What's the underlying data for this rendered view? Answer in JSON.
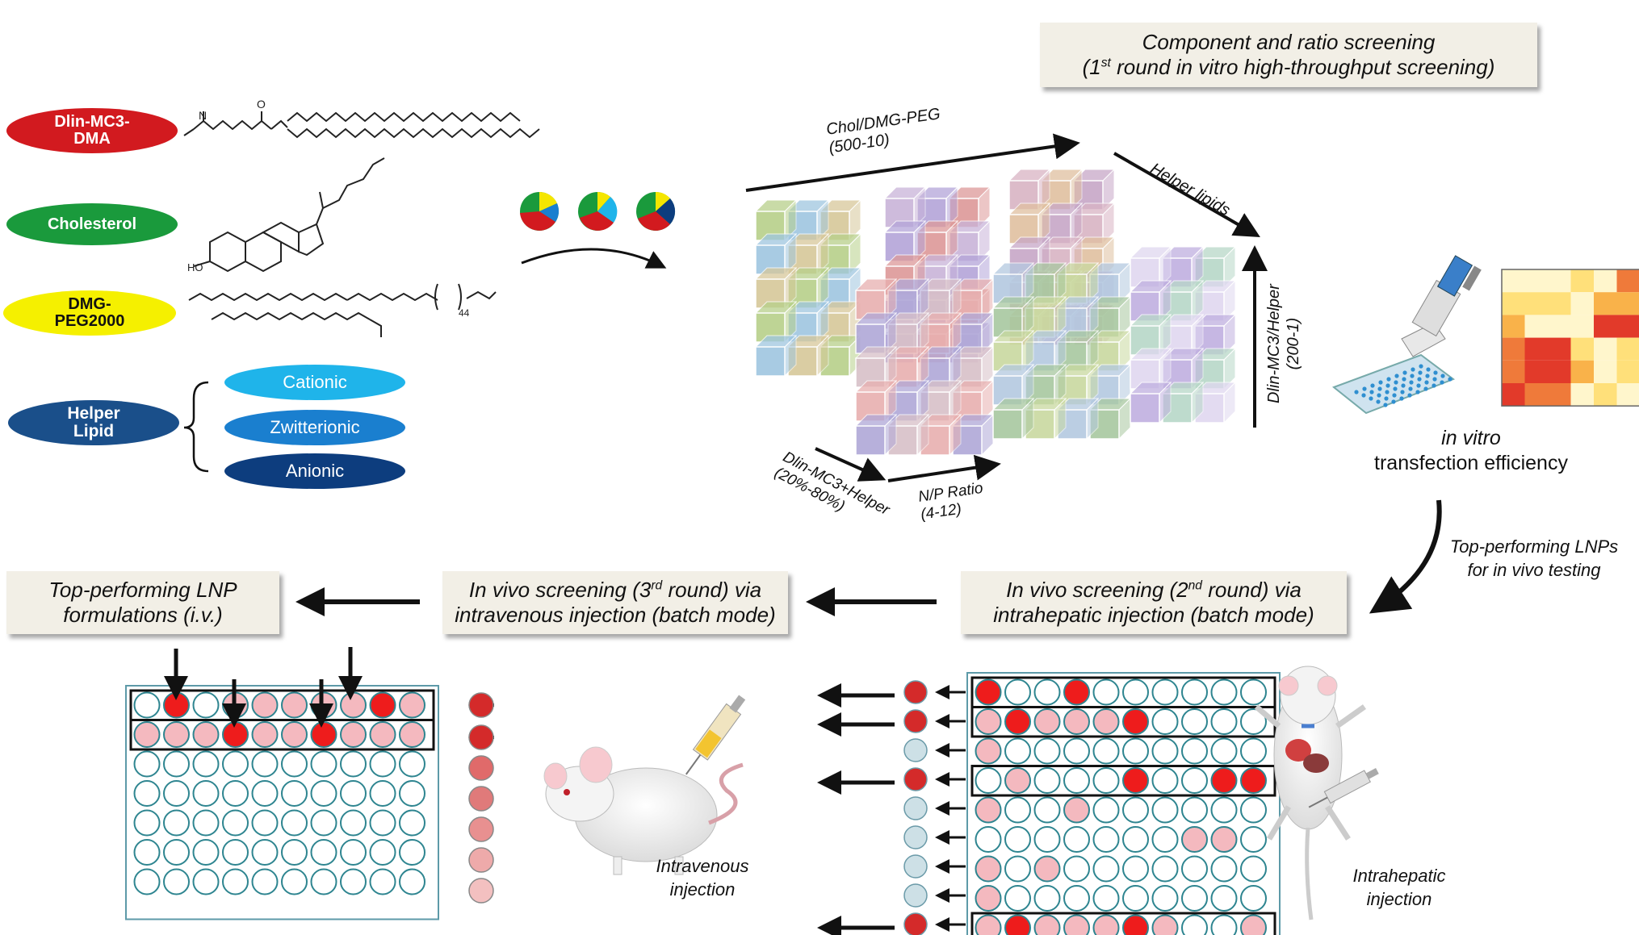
{
  "lipids": [
    {
      "label": "Dlin-MC3-DMA",
      "color": "#d21a1f",
      "text_color": "#ffffff"
    },
    {
      "label": "Cholesterol",
      "color": "#1a9a3c",
      "text_color": "#ffffff"
    },
    {
      "label": "DMG-PEG2000",
      "color": "#f5f000",
      "text_color": "#111111"
    },
    {
      "label": "Helper Lipid",
      "color": "#1a4f8a",
      "text_color": "#ffffff"
    }
  ],
  "helper_types": [
    {
      "label": "Cationic",
      "color": "#1fb4ea"
    },
    {
      "label": "Zwitterionic",
      "color": "#1a7fcf"
    },
    {
      "label": "Anionic",
      "color": "#0d3d7e"
    }
  ],
  "peg_subscript": "44",
  "screening_box": {
    "line1": "Component and ratio screening",
    "line2_pre": "(1",
    "line2_sup": "st",
    "line2_post": " round in vitro high-throughput screening)"
  },
  "axes": {
    "chol": {
      "line1": "Chol/DMG-PEG",
      "line2": "(500-10)"
    },
    "helper": "Helper lipids",
    "mc3helper": {
      "line1": "Dlin-MC3/Helper",
      "line2": "(200-1)"
    },
    "mc3plus": {
      "line1": "Dlin-MC3+Helper",
      "line2": "(20%-80%)"
    },
    "np": {
      "line1": "N/P Ratio",
      "line2": "(4-12)"
    }
  },
  "transfection": {
    "line1": "in vitro",
    "line2": "transfection efficiency"
  },
  "top_lnps": {
    "line1": "Top-performing LNPs",
    "line2": "for in vivo testing"
  },
  "round2_box": {
    "line1_pre": "In vivo screening (2",
    "line1_sup": "nd",
    "line1_post": " round) via",
    "line2": "intrahepatic injection (batch mode)"
  },
  "round3_box": {
    "line1_pre": "In vivo screening (3",
    "line1_sup": "rd",
    "line1_post": " round) via",
    "line2": "intravenous injection (batch mode)"
  },
  "top_box": {
    "line1": "Top-performing LNP",
    "line2": "formulations (i.v.)"
  },
  "iv_label": {
    "line1": "Intravenous",
    "line2": "injection"
  },
  "ih_label": {
    "line1": "Intrahepatic",
    "line2": "injection"
  }
}
